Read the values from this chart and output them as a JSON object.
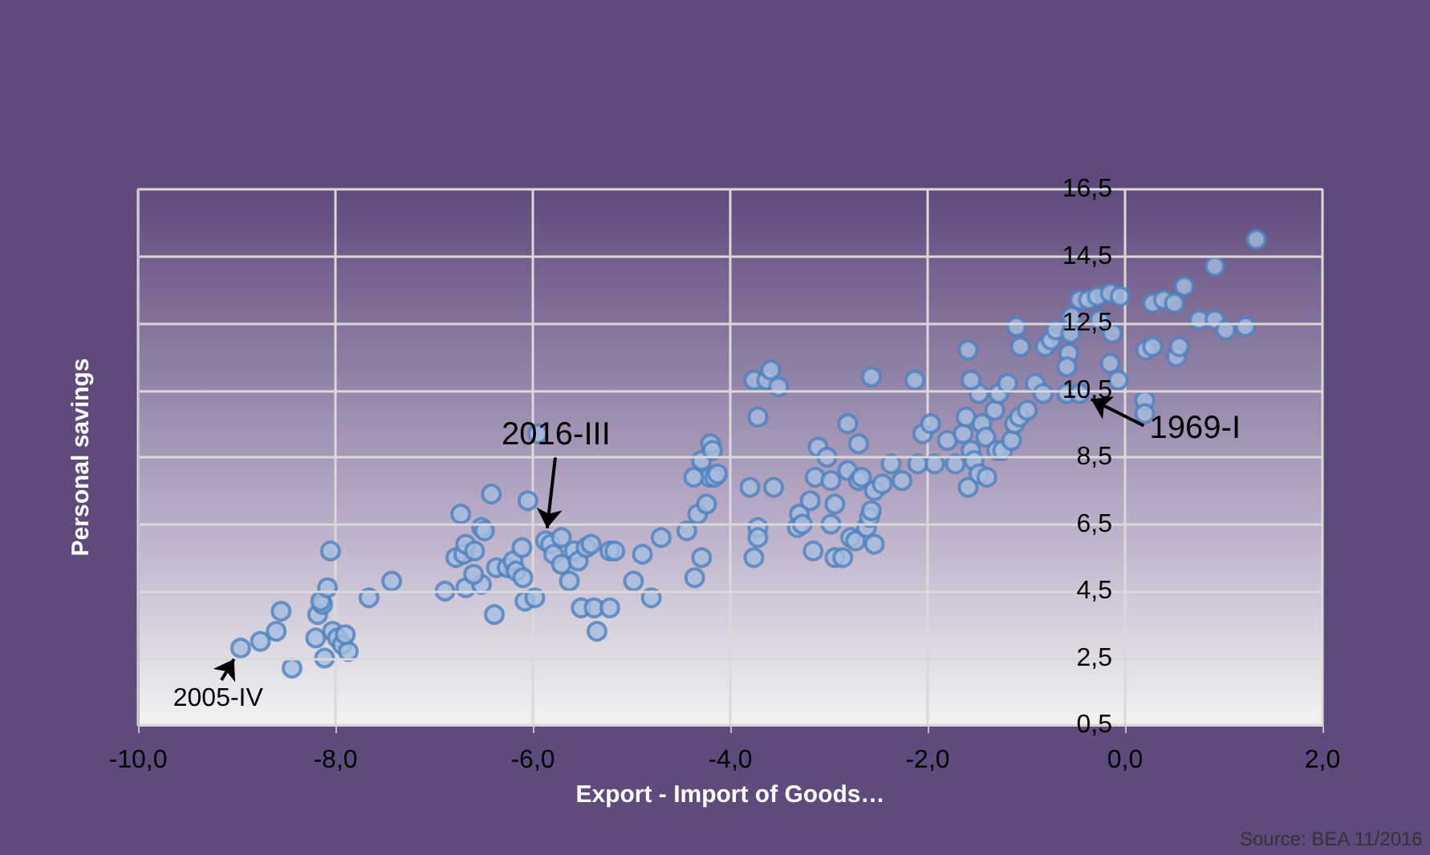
{
  "chart_data": {
    "type": "scatter",
    "xlabel": "Export - Import of Goods…",
    "ylabel": "Personal savings",
    "annotations": [
      {
        "text": "2016-III",
        "x": -5.87,
        "y": 6.0
      },
      {
        "text": "1969-I",
        "x": -0.46,
        "y": 10.4
      },
      {
        "text": "2005-IV",
        "x": -8.96,
        "y": 2.8
      },
      "Source: BEA 11/2016"
    ],
    "xlim": [
      -10,
      2
    ],
    "xticks": [
      {
        "value": -10,
        "label": "-10,0"
      },
      {
        "value": -8,
        "label": "-8,0"
      },
      {
        "value": -6,
        "label": "-6,0"
      },
      {
        "value": -4,
        "label": "-4,0"
      },
      {
        "value": -2,
        "label": "-2,0"
      },
      {
        "value": 0,
        "label": "0,0"
      },
      {
        "value": 2,
        "label": "2,0"
      }
    ],
    "ylim": [
      0.5,
      16.5
    ],
    "yticks": [
      {
        "value": 0.5,
        "label": "0,5"
      },
      {
        "value": 2.5,
        "label": "2,5"
      },
      {
        "value": 4.5,
        "label": "4,5"
      },
      {
        "value": 6.5,
        "label": "6,5"
      },
      {
        "value": 8.5,
        "label": "8,5"
      },
      {
        "value": 10.5,
        "label": "10,5"
      },
      {
        "value": 12.5,
        "label": "12,5"
      },
      {
        "value": 14.5,
        "label": "14,5"
      },
      {
        "value": 16.5,
        "label": "16,5"
      }
    ],
    "grid": true,
    "marker": "circle",
    "series": [
      {
        "color": "#4f81bd",
        "x": [
          -8.96,
          -8.76,
          -8.6,
          -8.55,
          -8.44,
          -8.18,
          -8.13,
          -8.15,
          -8.08,
          -8.05,
          -8.11,
          -8.03,
          -7.98,
          -7.93,
          -7.87,
          -8.2,
          -7.9,
          -7.66,
          -7.43,
          -6.89,
          -6.78,
          -6.7,
          -6.73,
          -6.68,
          -6.59,
          -6.52,
          -6.42,
          -6.39,
          -6.68,
          -6.52,
          -6.6,
          -6.37,
          -6.26,
          -6.2,
          -6.17,
          -6.11,
          -6.1,
          -6.08,
          -6.05,
          -6.49,
          -5.95,
          -5.98,
          -5.87,
          -5.82,
          -5.79,
          -5.71,
          -5.71,
          -5.63,
          -5.58,
          -5.54,
          -5.51,
          -5.46,
          -5.41,
          -5.38,
          -5.35,
          -5.22,
          -5.22,
          -5.17,
          -4.98,
          -4.89,
          -4.8,
          -4.7,
          -4.44,
          -4.36,
          -4.33,
          -4.29,
          -4.24,
          -4.21,
          -4.37,
          -4.16,
          -4.13,
          -4.29,
          -4.2,
          -4.18,
          -3.8,
          -3.72,
          -3.76,
          -3.63,
          -3.59,
          -3.51,
          -3.72,
          -3.72,
          -3.76,
          -3.56,
          -3.3,
          -3.32,
          -3.27,
          -3.16,
          -3.19,
          -3.14,
          -3.11,
          -3.02,
          -2.98,
          -2.94,
          -2.98,
          -2.94,
          -2.86,
          -2.78,
          -2.73,
          -2.62,
          -2.59,
          -2.57,
          -2.54,
          -2.81,
          -2.81,
          -2.7,
          -2.7,
          -2.67,
          -2.54,
          -2.46,
          -2.37,
          -2.57,
          -2.26,
          -2.13,
          -2.05,
          -1.97,
          -1.93,
          -2.1,
          -1.8,
          -1.72,
          -1.64,
          -1.61,
          -1.56,
          -1.59,
          -1.53,
          -1.48,
          -1.45,
          -1.4,
          -1.41,
          -1.3,
          -1.24,
          -1.15,
          -1.12,
          -1.07,
          -0.99,
          -1.32,
          -1.48,
          -1.56,
          -1.59,
          -1.28,
          -1.19,
          -1.1,
          -1.06,
          -0.91,
          -0.83,
          -0.81,
          -0.75,
          -0.7,
          -0.57,
          -0.59,
          -0.59,
          -0.55,
          -0.54,
          -0.46,
          -0.46,
          -0.37,
          -0.28,
          -0.26,
          -0.15,
          -0.13,
          -0.15,
          -0.07,
          -0.05,
          0.2,
          0.2,
          0.21,
          0.28,
          0.28,
          0.39,
          0.5,
          0.52,
          0.55,
          0.6,
          0.75,
          0.91,
          0.91,
          1.02,
          1.22,
          1.33
        ],
        "values": [
          2.8,
          3.0,
          3.3,
          3.9,
          2.2,
          3.8,
          4.1,
          4.2,
          4.6,
          5.7,
          2.5,
          3.3,
          3.1,
          2.9,
          2.7,
          3.1,
          3.2,
          4.3,
          4.8,
          4.5,
          5.5,
          5.6,
          6.8,
          5.9,
          5.7,
          6.4,
          7.4,
          3.8,
          4.6,
          4.7,
          5.0,
          5.2,
          5.2,
          5.4,
          5.1,
          5.8,
          4.9,
          4.2,
          7.2,
          6.3,
          9.2,
          4.3,
          6.0,
          5.9,
          5.6,
          6.1,
          5.3,
          4.8,
          5.7,
          5.4,
          4.0,
          5.8,
          5.9,
          4.0,
          3.3,
          4.0,
          5.7,
          5.7,
          4.8,
          5.6,
          4.3,
          6.1,
          6.3,
          4.9,
          6.8,
          5.5,
          7.1,
          7.9,
          7.9,
          7.9,
          8.0,
          8.4,
          8.9,
          8.7,
          7.6,
          9.7,
          10.8,
          10.8,
          11.1,
          10.6,
          6.4,
          6.1,
          5.5,
          7.6,
          6.8,
          6.4,
          6.5,
          5.7,
          7.2,
          7.9,
          8.8,
          8.5,
          7.8,
          7.1,
          6.5,
          5.5,
          5.5,
          6.1,
          6.0,
          6.4,
          6.7,
          6.9,
          5.9,
          9.5,
          8.1,
          8.9,
          7.8,
          7.9,
          7.5,
          7.7,
          8.3,
          10.9,
          7.8,
          10.8,
          9.2,
          9.5,
          8.3,
          8.3,
          9.0,
          8.3,
          9.2,
          9.7,
          8.7,
          7.6,
          8.4,
          8.0,
          9.5,
          7.9,
          9.1,
          8.7,
          8.7,
          9.0,
          9.5,
          9.7,
          9.9,
          9.9,
          10.4,
          10.8,
          11.7,
          10.4,
          10.7,
          12.4,
          11.8,
          10.7,
          10.4,
          11.8,
          12.0,
          12.3,
          11.6,
          11.2,
          10.4,
          12.2,
          12.7,
          13.2,
          10.4,
          13.2,
          13.3,
          12.6,
          13.4,
          12.2,
          11.3,
          10.8,
          13.3,
          10.2,
          9.8,
          11.7,
          11.8,
          13.1,
          13.2,
          13.1,
          11.5,
          11.8,
          13.6,
          12.6,
          12.6,
          14.2,
          12.3,
          12.4,
          15.0
        ]
      }
    ]
  }
}
